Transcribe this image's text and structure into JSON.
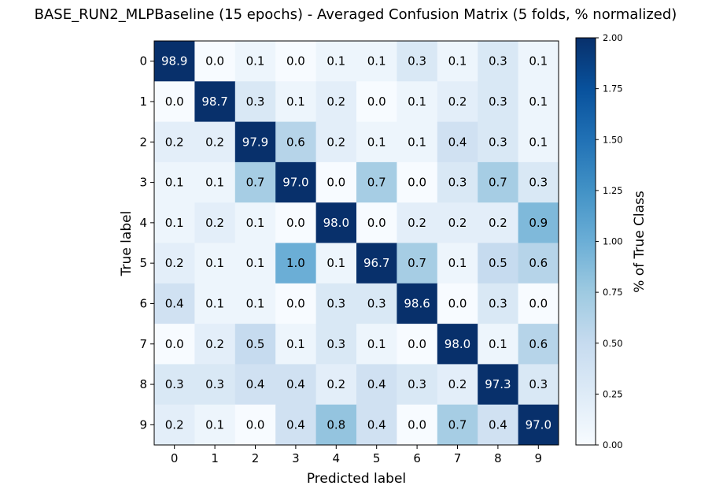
{
  "chart_data": {
    "type": "heatmap",
    "title": "BASE_RUN2_MLPBaseline (15 epochs) - Averaged Confusion Matrix (5 folds, % normalized)",
    "xlabel": "Predicted label",
    "ylabel": "True label",
    "x_categories": [
      "0",
      "1",
      "2",
      "3",
      "4",
      "5",
      "6",
      "7",
      "8",
      "9"
    ],
    "y_categories": [
      "0",
      "1",
      "2",
      "3",
      "4",
      "5",
      "6",
      "7",
      "8",
      "9"
    ],
    "values": [
      [
        98.9,
        0.0,
        0.1,
        0.0,
        0.1,
        0.1,
        0.3,
        0.1,
        0.3,
        0.1
      ],
      [
        0.0,
        98.7,
        0.3,
        0.1,
        0.2,
        0.0,
        0.1,
        0.2,
        0.3,
        0.1
      ],
      [
        0.2,
        0.2,
        97.9,
        0.6,
        0.2,
        0.1,
        0.1,
        0.4,
        0.3,
        0.1
      ],
      [
        0.1,
        0.1,
        0.7,
        97.0,
        0.0,
        0.7,
        0.0,
        0.3,
        0.7,
        0.3
      ],
      [
        0.1,
        0.2,
        0.1,
        0.0,
        98.0,
        0.0,
        0.2,
        0.2,
        0.2,
        0.9
      ],
      [
        0.2,
        0.1,
        0.1,
        1.0,
        0.1,
        96.7,
        0.7,
        0.1,
        0.5,
        0.6
      ],
      [
        0.4,
        0.1,
        0.1,
        0.0,
        0.3,
        0.3,
        98.6,
        0.0,
        0.3,
        0.0
      ],
      [
        0.0,
        0.2,
        0.5,
        0.1,
        0.3,
        0.1,
        0.0,
        98.0,
        0.1,
        0.6
      ],
      [
        0.3,
        0.3,
        0.4,
        0.4,
        0.2,
        0.4,
        0.3,
        0.2,
        97.3,
        0.3
      ],
      [
        0.2,
        0.1,
        0.0,
        0.4,
        0.8,
        0.4,
        0.0,
        0.7,
        0.4,
        97.0
      ]
    ],
    "colorbar": {
      "label": "% of True Class",
      "range": [
        0.0,
        2.0
      ],
      "ticks": [
        "0.00",
        "0.25",
        "0.50",
        "0.75",
        "1.00",
        "1.25",
        "1.50",
        "1.75",
        "2.00"
      ],
      "colormap": "Blues"
    }
  }
}
